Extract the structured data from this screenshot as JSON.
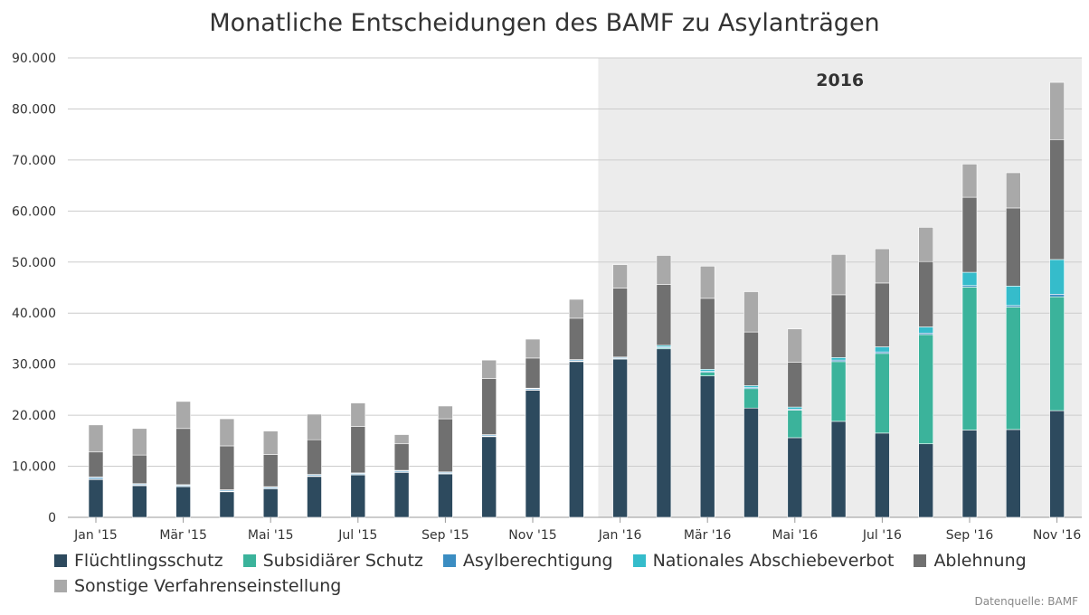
{
  "title": "Monatliche Entscheidungen des BAMF zu Asylanträgen",
  "source": "Datenquelle: BAMF",
  "highlight_label": "2016",
  "chart_data": {
    "type": "bar",
    "stacked": true,
    "title": "Monatliche Entscheidungen des BAMF zu Asylanträgen",
    "ylim": [
      0,
      90000
    ],
    "yticks": [
      "0",
      "10.000",
      "20.000",
      "30.000",
      "40.000",
      "50.000",
      "60.000",
      "70.000",
      "80.000",
      "90.000"
    ],
    "grid": true,
    "legend_position": "bottom",
    "highlight_region": {
      "label": "2016",
      "from_category": "Jan '16",
      "to_category": "Nov '16"
    },
    "categories": [
      "Jan '15",
      "Feb '15",
      "Mär '15",
      "Apr '15",
      "Mai '15",
      "Jun '15",
      "Jul '15",
      "Aug '15",
      "Sep '15",
      "Okt '15",
      "Nov '15",
      "Dez '15",
      "Jan '16",
      "Feb '16",
      "Mär '16",
      "Apr '16",
      "Mai '16",
      "Jun '16",
      "Jul '16",
      "Aug '16",
      "Sep '16",
      "Okt '16",
      "Nov '16"
    ],
    "category_tick_labels": [
      "Jan '15",
      "",
      "Mär '15",
      "",
      "Mai '15",
      "",
      "Jul '15",
      "",
      "Sep '15",
      "",
      "Nov '15",
      "",
      "Jan '16",
      "",
      "Mär '16",
      "",
      "Mai '16",
      "",
      "Jul '16",
      "",
      "Sep '16",
      "",
      "Nov '16"
    ],
    "series": [
      {
        "name": "Flüchtlingsschutz",
        "color": "#2d4a5e",
        "values": [
          7400,
          6200,
          6000,
          5000,
          5600,
          8000,
          8300,
          8800,
          8500,
          15800,
          24900,
          30500,
          31000,
          33000,
          27700,
          21400,
          15600,
          18800,
          16500,
          14400,
          17100,
          17200,
          20900
        ]
      },
      {
        "name": "Subsidiärer Schutz",
        "color": "#3bb39b",
        "values": [
          100,
          100,
          100,
          100,
          100,
          100,
          100,
          100,
          100,
          100,
          100,
          100,
          100,
          200,
          700,
          3800,
          5400,
          11700,
          15600,
          21400,
          28000,
          24000,
          22300
        ]
      },
      {
        "name": "Asylberechtigung",
        "color": "#3b8dc2",
        "values": [
          300,
          200,
          200,
          200,
          200,
          200,
          200,
          200,
          200,
          200,
          200,
          200,
          200,
          200,
          200,
          200,
          200,
          300,
          300,
          300,
          300,
          300,
          500
        ]
      },
      {
        "name": "Nationales Abschiebeverbot",
        "color": "#35bccb",
        "values": [
          100,
          100,
          100,
          100,
          100,
          100,
          100,
          100,
          100,
          100,
          100,
          100,
          100,
          300,
          400,
          400,
          400,
          500,
          1000,
          1200,
          2600,
          3800,
          6800
        ]
      },
      {
        "name": "Ablehnung",
        "color": "#707070",
        "values": [
          4900,
          5600,
          11000,
          8600,
          6300,
          6800,
          9100,
          5200,
          10400,
          11000,
          5900,
          8100,
          13500,
          11900,
          13900,
          10500,
          8800,
          12300,
          12500,
          12800,
          14700,
          15300,
          23500
        ]
      },
      {
        "name": "Sonstige Verfahrenseinstellung",
        "color": "#a9a9a9",
        "values": [
          5300,
          5200,
          5300,
          5300,
          4600,
          5000,
          4600,
          1800,
          2500,
          3600,
          3700,
          3700,
          4600,
          5700,
          6300,
          7900,
          6500,
          7900,
          6700,
          6700,
          6500,
          6900,
          11200
        ]
      }
    ]
  }
}
